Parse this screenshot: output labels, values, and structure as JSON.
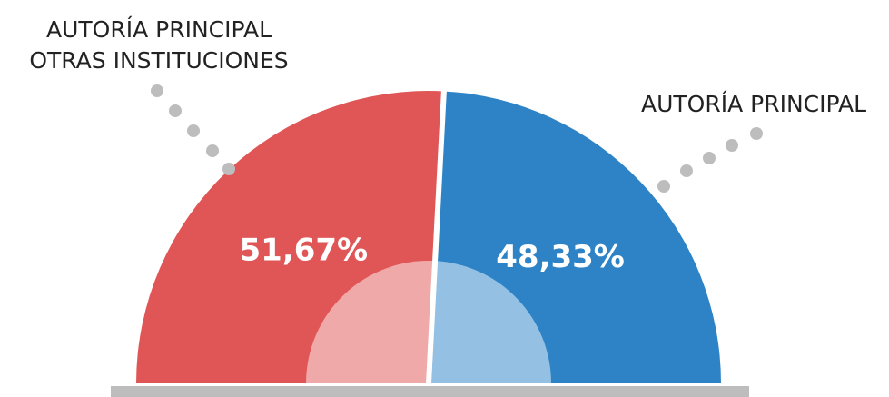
{
  "chart_data": {
    "type": "half-donut",
    "categories": [
      "AUTORÍA PRINCIPAL OTRAS INSTITUCIONES",
      "AUTORÍA PRINCIPAL"
    ],
    "values": [
      51.67,
      48.33
    ],
    "value_labels": [
      "51,67%",
      "48,33%"
    ],
    "colors": [
      "#e05656",
      "#2d83c5"
    ],
    "inner_colors": [
      "#f0a9a9",
      "#94c1e3"
    ]
  }
}
